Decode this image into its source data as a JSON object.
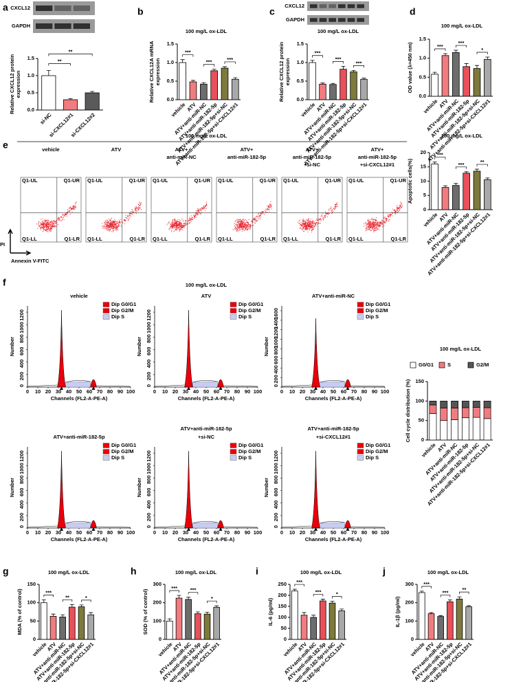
{
  "chart_data": [
    {
      "type": "bar",
      "panel": "a",
      "blot_labels": [
        "CXCL12",
        "GAPDH"
      ],
      "ylabel": [
        "Relative CXCL12 protein",
        "expression"
      ],
      "categories": [
        "si-NC",
        "si-CXCL12#1",
        "si-CXCL12#2"
      ],
      "values": [
        1.0,
        0.3,
        0.5
      ],
      "errors": [
        0.15,
        0.03,
        0.04
      ],
      "colors": [
        "#ffffff",
        "#f07c80",
        "#5a5a5a"
      ],
      "ylim": [
        0,
        1.5
      ],
      "yticks": [
        {
          "value": 0,
          "label": "0.0"
        },
        {
          "value": 0.5,
          "label": "0.5"
        },
        {
          "value": 1,
          "label": "1.0"
        },
        {
          "value": 1.5,
          "label": "1.5"
        }
      ],
      "annotations": [
        "**",
        "**"
      ]
    },
    {
      "type": "bar",
      "panel": "b",
      "title": "100 mg/L ox-LDL",
      "ylabel": [
        "Relative CXCL12A mRNA",
        "expression"
      ],
      "categories": [
        "vehicle",
        "ATV",
        "ATV+anti-miR-NC",
        "ATV+anti-miR-182-5p",
        "ATV+anti-miR-182-5p+si-NC",
        "ATV+anti-miR-182-5p+si-CXCL12#1"
      ],
      "values": [
        1.0,
        0.48,
        0.42,
        0.78,
        0.85,
        0.55
      ],
      "errors": [
        0.08,
        0.04,
        0.04,
        0.04,
        0.04,
        0.04
      ],
      "colors": [
        "#ffffff",
        "#f07c80",
        "#6d6d6d",
        "#e8505a",
        "#7d7a3c",
        "#a8a8a8"
      ],
      "ylim": [
        0,
        1.5
      ],
      "yticks": [
        {
          "value": 0,
          "label": "0.0"
        },
        {
          "value": 0.5,
          "label": "0.5"
        },
        {
          "value": 1,
          "label": "1.0"
        },
        {
          "value": 1.5,
          "label": "1.5"
        }
      ],
      "annotations": [
        "***",
        "***",
        "***"
      ]
    },
    {
      "type": "bar",
      "panel": "c",
      "blot_labels": [
        "CXCL12",
        "GAPDH"
      ],
      "title": "100 mg/L ox-LDL",
      "ylabel": [
        "Relative CXCL12 protein",
        "expression"
      ],
      "categories": [
        "vehicle",
        "ATV",
        "ATV+anti-miR-NC",
        "ATV+anti-miR-182-5p",
        "ATV+anti-miR-182-5p+si-NC",
        "ATV+anti-miR-182-5p+si-CXCL12#1"
      ],
      "values": [
        1.0,
        0.42,
        0.41,
        0.82,
        0.75,
        0.55
      ],
      "errors": [
        0.06,
        0.03,
        0.03,
        0.08,
        0.04,
        0.03
      ],
      "colors": [
        "#ffffff",
        "#f07c80",
        "#6d6d6d",
        "#e8505a",
        "#7d7a3c",
        "#a8a8a8"
      ],
      "ylim": [
        0,
        1.5
      ],
      "yticks": [
        {
          "value": 0,
          "label": "0.0"
        },
        {
          "value": 0.5,
          "label": "0.5"
        },
        {
          "value": 1,
          "label": "1.0"
        },
        {
          "value": 1.5,
          "label": "1.5"
        }
      ],
      "annotations": [
        "***",
        "***",
        "***"
      ]
    },
    {
      "type": "bar",
      "panel": "d",
      "title": "100 mg/L ox-LDL",
      "ylabel": [
        "OD value (λ=450 nm)"
      ],
      "categories": [
        "vehicle",
        "ATV",
        "ATV+anti-miR-NC",
        "ATV+anti-miR-182-5p",
        "ATV+anti-miR-182-5p+si-NC",
        "ATV+anti-miR-182-5p+si-CXCL12#1"
      ],
      "values": [
        0.58,
        1.07,
        1.15,
        0.78,
        0.73,
        0.97
      ],
      "errors": [
        0.05,
        0.05,
        0.06,
        0.08,
        0.08,
        0.06
      ],
      "colors": [
        "#ffffff",
        "#f07c80",
        "#6d6d6d",
        "#e8505a",
        "#7d7a3c",
        "#a8a8a8"
      ],
      "ylim": [
        0,
        1.5
      ],
      "yticks": [
        {
          "value": 0,
          "label": "0.0"
        },
        {
          "value": 0.5,
          "label": "0.5"
        },
        {
          "value": 1,
          "label": "1.0"
        },
        {
          "value": 1.5,
          "label": "1.5"
        }
      ],
      "annotations": [
        "***",
        "***",
        "*"
      ]
    },
    {
      "type": "flow",
      "panel": "e",
      "title": "100 mg/L ox-LDL",
      "plot_titles": [
        [
          "vehicle"
        ],
        [
          "ATV"
        ],
        [
          "ATV+",
          "anti-miR-NC"
        ],
        [
          "ATV+",
          "anti-miR-182-5p"
        ],
        [
          "ATV+",
          "anti-miR-182-5p",
          "+si-NC"
        ],
        [
          "ATV+",
          "anti-miR-182-5p",
          "+si-CXCL12#1"
        ]
      ],
      "quadrants": [
        "Q1-UL",
        "Q1-UR",
        "Q1-LL",
        "Q1-LR"
      ],
      "xlabel": "Annexin V-FITC",
      "ylabel": "PI"
    },
    {
      "type": "bar",
      "title": "100 mg/L ox-LDL",
      "ylabel": [
        "Apoptotic cells(%)"
      ],
      "categories": [
        "vehicle",
        "ATV",
        "ATV+anti-miR-NC",
        "ATV+anti-miR-182-5p",
        "ATV+anti-miR-182-5p+si-NC",
        "ATV+anti-miR-182-5p+si-CXCL12#1"
      ],
      "values": [
        16,
        7.8,
        8.5,
        12.8,
        13.5,
        10.5
      ],
      "errors": [
        0.7,
        0.6,
        0.7,
        0.5,
        0.7,
        0.6
      ],
      "colors": [
        "#ffffff",
        "#f07c80",
        "#6d6d6d",
        "#e8505a",
        "#7d7a3c",
        "#a8a8a8"
      ],
      "ylim": [
        0,
        20
      ],
      "yticks": [
        0,
        5,
        10,
        15,
        20
      ],
      "annotations": [
        "***",
        "***",
        "**"
      ]
    },
    {
      "type": "cellcycle",
      "panel": "f",
      "title": "100 mg/L ox-LDL",
      "xlabel": "Channels (FL2-A-PE-A)",
      "ylabel": "Number",
      "legend": [
        "Dip G0/G1",
        "Dip G2/M",
        "Dip S"
      ],
      "legend_colors": [
        "#e8000b",
        "#e8000b",
        "#c8cdf0"
      ],
      "xlim": [
        0,
        100
      ],
      "xticks": [
        0,
        10,
        20,
        30,
        40,
        50,
        60,
        70,
        80,
        90,
        100
      ],
      "plots": [
        {
          "title": [
            "vehicle"
          ],
          "ylim": [
            0,
            1300
          ],
          "yticks": [
            0,
            200,
            400,
            600,
            800,
            1000,
            1200
          ]
        },
        {
          "title": [
            "ATV"
          ],
          "ylim": [
            0,
            1300
          ],
          "yticks": [
            0,
            200,
            400,
            600,
            800,
            1000,
            1200
          ]
        },
        {
          "title": [
            "ATV+anti-miR-NC"
          ],
          "ylim": [
            0,
            1700
          ],
          "yticks": [
            0,
            200,
            400,
            600,
            800,
            1000,
            1200,
            1400,
            1600
          ]
        },
        {
          "title": [
            "ATV+anti-miR-182-5p"
          ],
          "ylim": [
            0,
            1300
          ],
          "yticks": [
            0,
            200,
            400,
            600,
            800,
            1000,
            1200
          ]
        },
        {
          "title": [
            "ATV+anti-miR-182-5p",
            "+si-NC"
          ],
          "ylim": [
            0,
            1300
          ],
          "yticks": [
            0,
            200,
            400,
            600,
            800,
            1000,
            1200
          ]
        },
        {
          "title": [
            "ATV+anti-miR-182-5p",
            "+si-CXCL12#1"
          ],
          "ylim": [
            0,
            1300
          ],
          "yticks": [
            0,
            200,
            400,
            600,
            800,
            1000,
            1200
          ]
        }
      ]
    },
    {
      "type": "stacked",
      "title": "100 mg/L ox-LDL",
      "ylabel": [
        "Cell cycle distribution (%)"
      ],
      "categories": [
        "vehicle",
        "ATV",
        "ATV+anti-miR-NC",
        "ATV+anti-miR-182-5p",
        "ATV+anti-miR-182-5p+si-NC",
        "ATV+anti-miR-182-5p+si-CXCL12#1"
      ],
      "series": [
        {
          "name": "G0/G1",
          "color": "#ffffff",
          "values": [
            68,
            50,
            52,
            57,
            58,
            55
          ]
        },
        {
          "name": "S",
          "color": "#f07c80",
          "values": [
            22,
            32,
            30,
            26,
            26,
            28
          ]
        },
        {
          "name": "G2/M",
          "color": "#555555",
          "values": [
            10,
            18,
            18,
            17,
            16,
            17
          ]
        }
      ],
      "ylim": [
        0,
        150
      ],
      "yticks": [
        0,
        50,
        100,
        150
      ]
    },
    {
      "type": "bar",
      "panel": "g",
      "title": "100 mg/L ox-LDL",
      "ylabel": [
        "MDA (% of control)"
      ],
      "categories": [
        "vehicle",
        "ATV",
        "ATV+anti-miR-NC",
        "ATV+anti-miR-182-5p",
        "ATV+anti-miR-182-5p+si-NC",
        "ATV+anti-miR-182-5p+si-CXCL12#1"
      ],
      "values": [
        100,
        63,
        61,
        88,
        89,
        67
      ],
      "errors": [
        8,
        6,
        6,
        7,
        5,
        6
      ],
      "colors": [
        "#ffffff",
        "#f07c80",
        "#6d6d6d",
        "#e8505a",
        "#7d7a3c",
        "#a8a8a8"
      ],
      "ylim": [
        0,
        150
      ],
      "yticks": [
        0,
        50,
        100,
        150
      ],
      "annotations": [
        "***",
        "**",
        "*"
      ]
    },
    {
      "type": "bar",
      "panel": "h",
      "title": "100 mg/L ox-LDL",
      "ylabel": [
        "SOD (% of control)"
      ],
      "categories": [
        "vehicle",
        "ATV",
        "ATV+anti-miR-NC",
        "ATV+anti-miR-182-5p",
        "ATV+anti-miR-182-5p+si-NC",
        "ATV+anti-miR-182-5p+si-CXCL12#1"
      ],
      "values": [
        100,
        225,
        218,
        140,
        138,
        175
      ],
      "errors": [
        12,
        15,
        12,
        10,
        10,
        8
      ],
      "colors": [
        "#ffffff",
        "#f07c80",
        "#6d6d6d",
        "#e8505a",
        "#7d7a3c",
        "#a8a8a8"
      ],
      "ylim": [
        0,
        300
      ],
      "yticks": [
        0,
        100,
        200,
        300
      ],
      "annotations": [
        "***",
        "***",
        "*"
      ]
    },
    {
      "type": "bar",
      "panel": "i",
      "title": "100 mg/L ox-LDL",
      "ylabel": [
        "IL-6 (pg/ml)"
      ],
      "categories": [
        "vehicle",
        "ATV",
        "ATV+anti-miR-NC",
        "ATV+anti-miR-182-5p",
        "ATV+anti-miR-182-5p+si-NC",
        "ATV+anti-miR-182-5p+si-CXCL12#1"
      ],
      "values": [
        220,
        110,
        100,
        175,
        165,
        130
      ],
      "errors": [
        8,
        12,
        10,
        8,
        8,
        8
      ],
      "colors": [
        "#ffffff",
        "#f07c80",
        "#6d6d6d",
        "#e8505a",
        "#7d7a3c",
        "#a8a8a8"
      ],
      "ylim": [
        0,
        250
      ],
      "yticks": [
        0,
        50,
        100,
        150,
        200,
        250
      ],
      "annotations": [
        "***",
        "***",
        "*"
      ]
    },
    {
      "type": "bar",
      "panel": "j",
      "title": "100 mg/L ox-LDL",
      "ylabel": [
        "IL-1β (pg/ml)"
      ],
      "categories": [
        "vehicle",
        "ATV",
        "ATV+anti-miR-NC",
        "ATV+anti-miR-182-5p",
        "ATV+anti-miR-182-5p+si-NC",
        "ATV+anti-miR-182-5p+si-CXCL12#1"
      ],
      "values": [
        255,
        140,
        125,
        205,
        220,
        178
      ],
      "errors": [
        8,
        6,
        5,
        10,
        12,
        6
      ],
      "colors": [
        "#ffffff",
        "#f07c80",
        "#6d6d6d",
        "#e8505a",
        "#7d7a3c",
        "#a8a8a8"
      ],
      "ylim": [
        0,
        300
      ],
      "yticks": [
        0,
        100,
        200,
        300
      ],
      "annotations": [
        "***",
        "***",
        "**"
      ]
    }
  ]
}
